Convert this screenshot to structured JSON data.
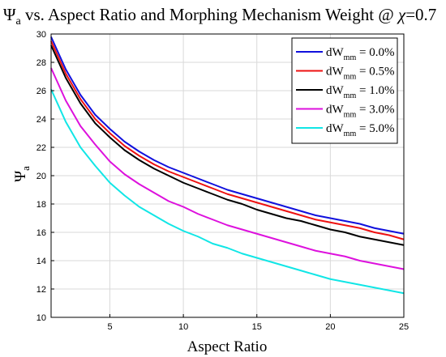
{
  "chart_data": {
    "type": "line",
    "title": {
      "symbol": "Ψ",
      "subscript": "a",
      "text": " vs. Aspect Ratio and Morphing Mechanism Weight @ ",
      "chi_symbol": "χ",
      "chi_value": "=0.7"
    },
    "xlabel": "Aspect Ratio",
    "ylabel": {
      "symbol": "Ψ",
      "subscript": "a"
    },
    "xlim": [
      1,
      25
    ],
    "ylim": [
      10,
      30
    ],
    "xticks": [
      5,
      10,
      15,
      20,
      25
    ],
    "yticks": [
      10,
      12,
      14,
      16,
      18,
      20,
      22,
      24,
      26,
      28,
      30
    ],
    "grid": true,
    "legend_position": "top-right",
    "x": [
      1,
      2,
      3,
      4,
      5,
      6,
      7,
      8,
      9,
      10,
      11,
      12,
      13,
      14,
      15,
      16,
      17,
      18,
      19,
      20,
      21,
      22,
      23,
      24,
      25
    ],
    "series": [
      {
        "legend_prefix": "dW",
        "legend_sub": "mm",
        "legend_value": " = 0.0%",
        "color": "#1010dd",
        "values": [
          29.8,
          27.5,
          25.7,
          24.3,
          23.3,
          22.4,
          21.7,
          21.1,
          20.6,
          20.2,
          19.8,
          19.4,
          19.0,
          18.7,
          18.4,
          18.1,
          17.8,
          17.5,
          17.2,
          17.0,
          16.8,
          16.6,
          16.3,
          16.1,
          15.9
        ]
      },
      {
        "legend_prefix": "dW",
        "legend_sub": "mm",
        "legend_value": " = 0.5%",
        "color": "#ee1111",
        "values": [
          29.5,
          27.2,
          25.4,
          24.0,
          23.0,
          22.1,
          21.4,
          20.8,
          20.3,
          19.9,
          19.5,
          19.1,
          18.7,
          18.4,
          18.1,
          17.8,
          17.5,
          17.2,
          16.9,
          16.7,
          16.5,
          16.3,
          16.0,
          15.8,
          15.5
        ]
      },
      {
        "legend_prefix": "dW",
        "legend_sub": "mm",
        "legend_value": " = 1.0%",
        "color": "#000000",
        "values": [
          29.2,
          26.9,
          25.1,
          23.7,
          22.7,
          21.8,
          21.1,
          20.5,
          20.0,
          19.5,
          19.1,
          18.7,
          18.3,
          18.0,
          17.6,
          17.3,
          17.0,
          16.8,
          16.5,
          16.2,
          16.0,
          15.7,
          15.5,
          15.3,
          15.1
        ]
      },
      {
        "legend_prefix": "dW",
        "legend_sub": "mm",
        "legend_value": " = 3.0%",
        "color": "#dd11dd",
        "values": [
          27.6,
          25.3,
          23.5,
          22.2,
          21.0,
          20.1,
          19.4,
          18.8,
          18.2,
          17.8,
          17.3,
          16.9,
          16.5,
          16.2,
          15.9,
          15.6,
          15.3,
          15.0,
          14.7,
          14.5,
          14.3,
          14.0,
          13.8,
          13.6,
          13.4
        ]
      },
      {
        "legend_prefix": "dW",
        "legend_sub": "mm",
        "legend_value": " = 5.0%",
        "color": "#11e6e6",
        "values": [
          26.1,
          23.8,
          22.0,
          20.7,
          19.5,
          18.6,
          17.8,
          17.2,
          16.6,
          16.1,
          15.7,
          15.2,
          14.9,
          14.5,
          14.2,
          13.9,
          13.6,
          13.3,
          13.0,
          12.7,
          12.5,
          12.3,
          12.1,
          11.9,
          11.7
        ]
      }
    ]
  }
}
